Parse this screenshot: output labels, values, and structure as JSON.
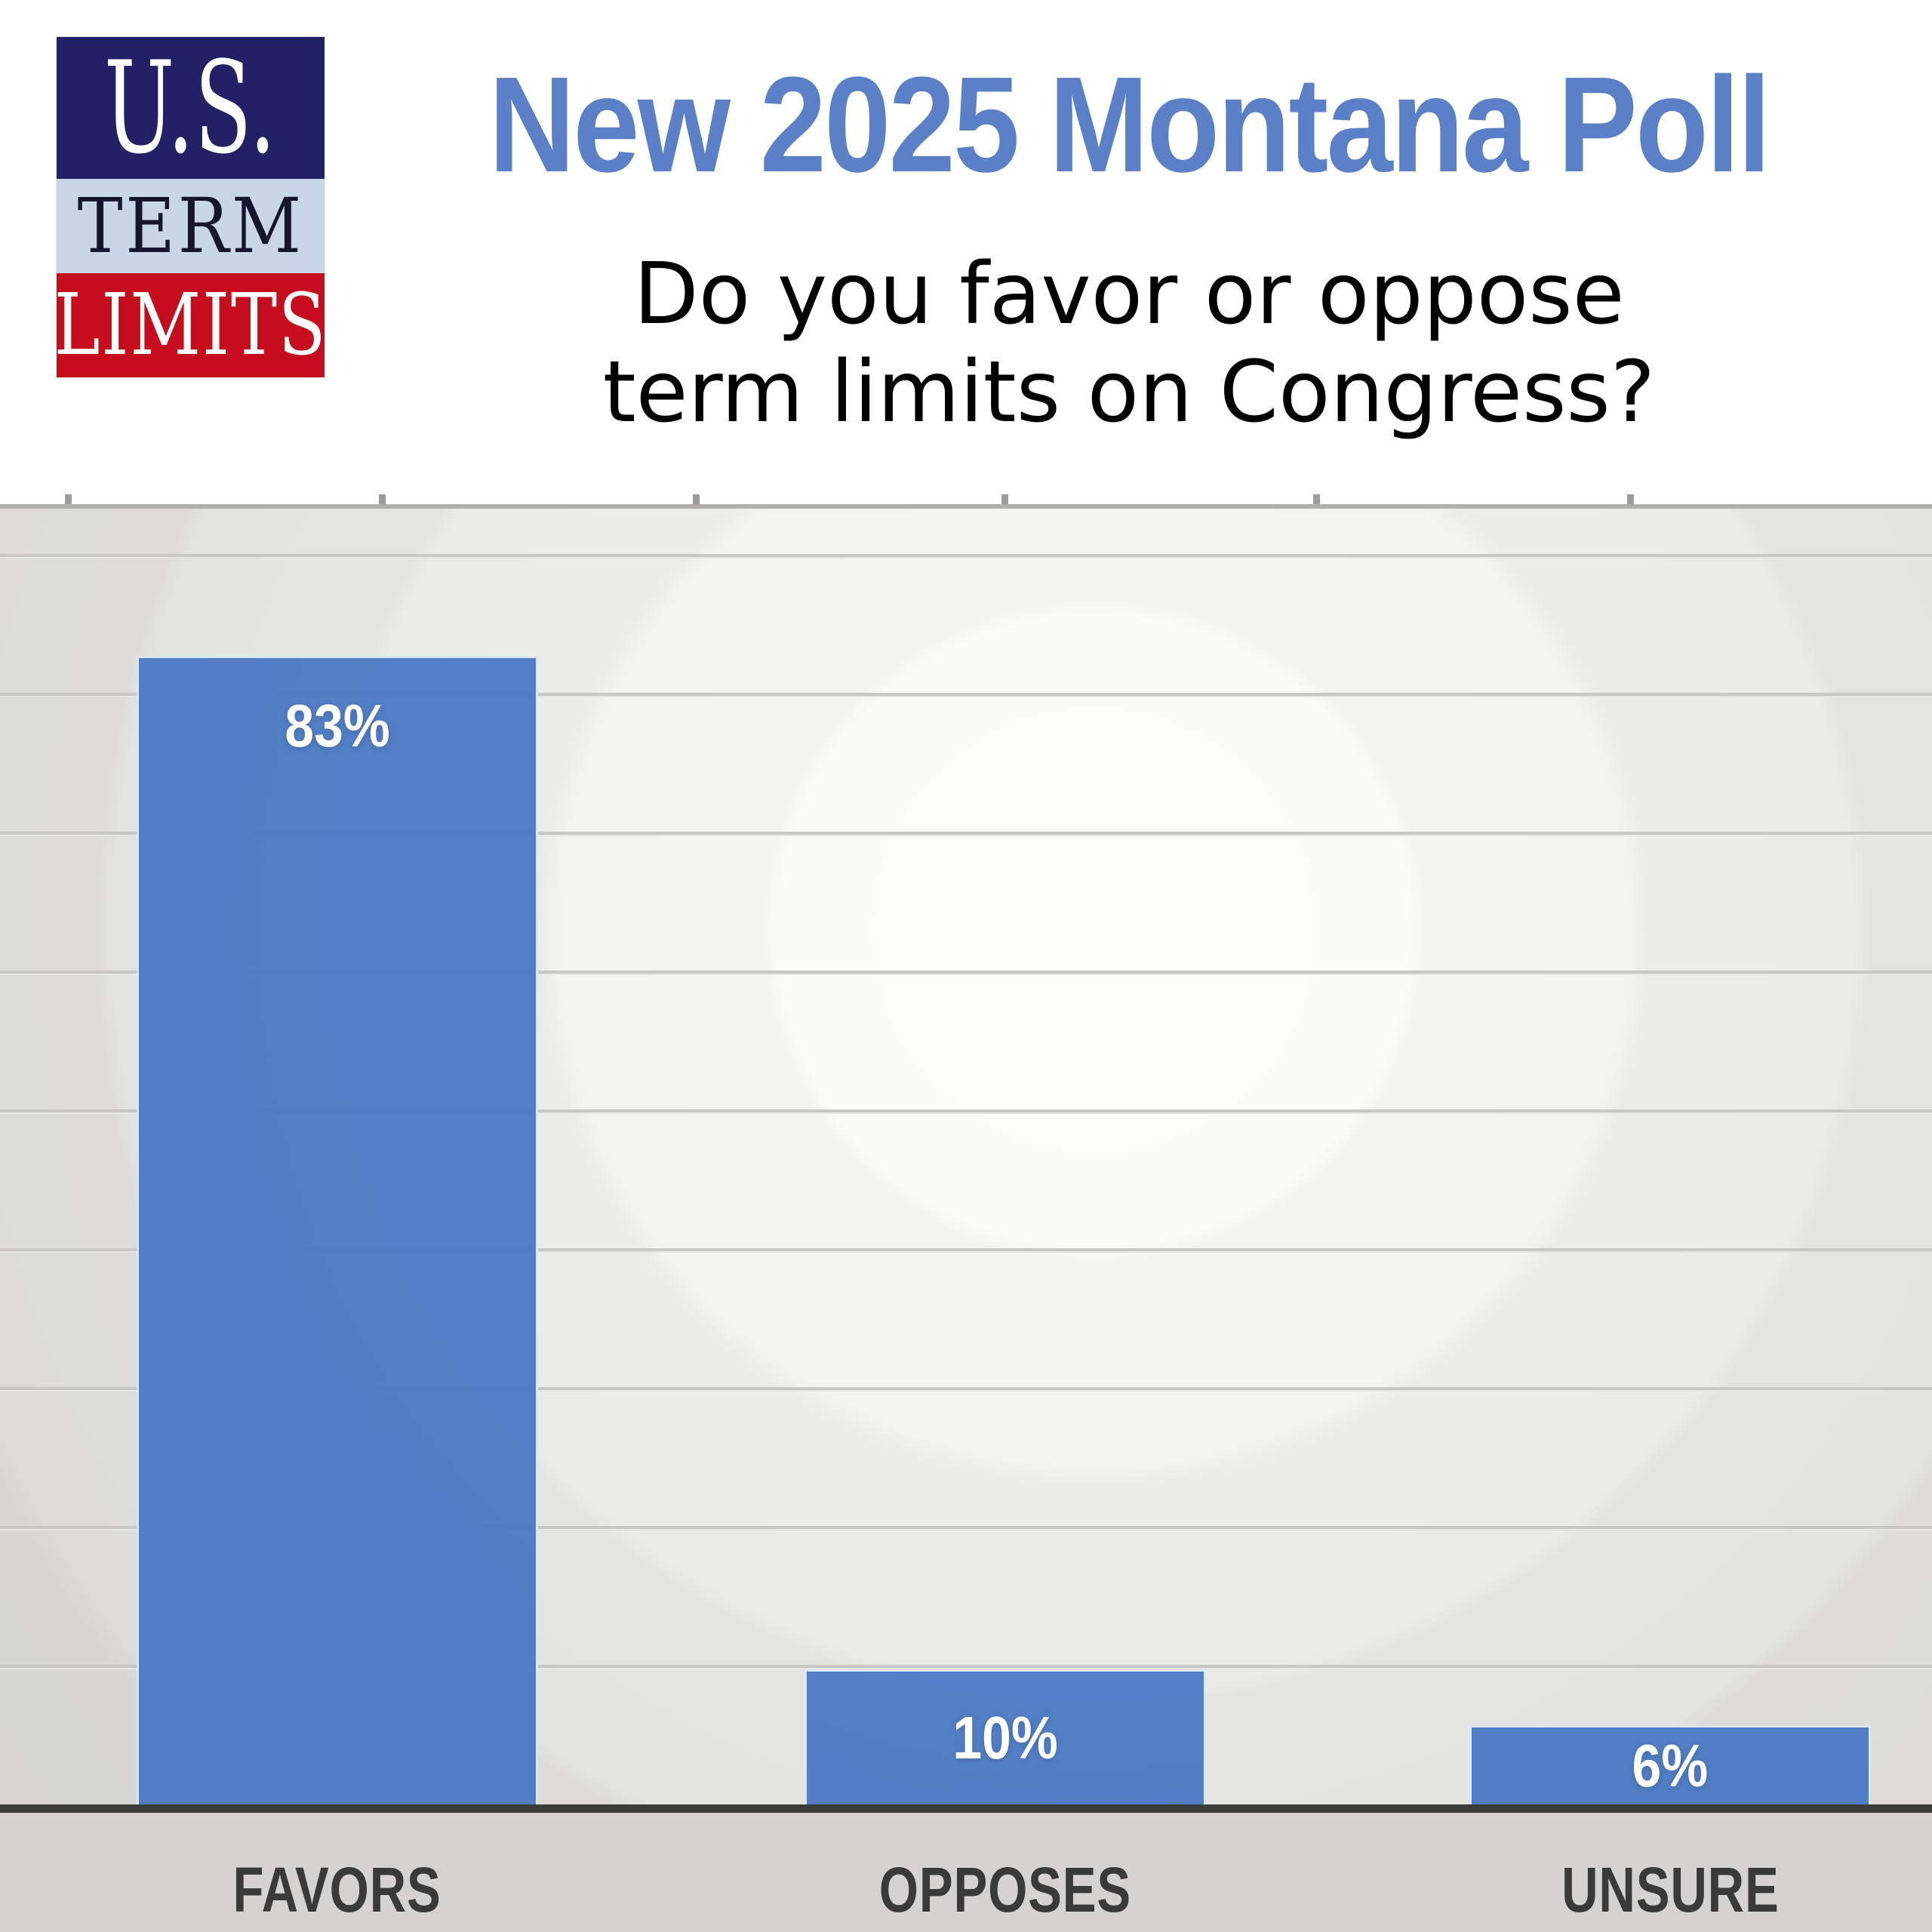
{
  "header": {
    "logo": {
      "line1": "U.S.",
      "line2": "TERM",
      "line3": "LIMITS"
    },
    "title": "New 2025 Montana Poll",
    "subtitle_line1": "Do you favor or oppose",
    "subtitle_line2": "term limits on Congress?"
  },
  "chart_data": {
    "type": "bar",
    "categories": [
      "FAVORS",
      "OPPOSES",
      "UNSURE"
    ],
    "values": [
      83,
      10,
      6
    ],
    "value_labels": [
      "83%",
      "10%",
      "6%"
    ],
    "title": "New 2025 Montana Poll",
    "subtitle": "Do you favor or oppose term limits on Congress?",
    "xlabel": "",
    "ylabel": "",
    "ylim": [
      0,
      94
    ],
    "gridlines": "horizontal every 10%, light gray",
    "legend": "none",
    "bar_color": "#4d7bc4",
    "value_label_color": "#ffffff",
    "category_label_color": "#3a3a3a"
  },
  "colors": {
    "title_blue": "#5b80c7",
    "bar_blue": "#4d7bc4",
    "logo_navy": "#232166",
    "logo_light_blue": "#c9d6ea",
    "logo_term_text": "#15152f",
    "logo_red": "#c60d1d",
    "axis_dark": "#3b3b3b",
    "gridline_gray": "#c8c7c5",
    "plot_edge_gray": "#b1afad",
    "strip_gray": "#d4d3d1",
    "background_white": "#ffffff"
  }
}
